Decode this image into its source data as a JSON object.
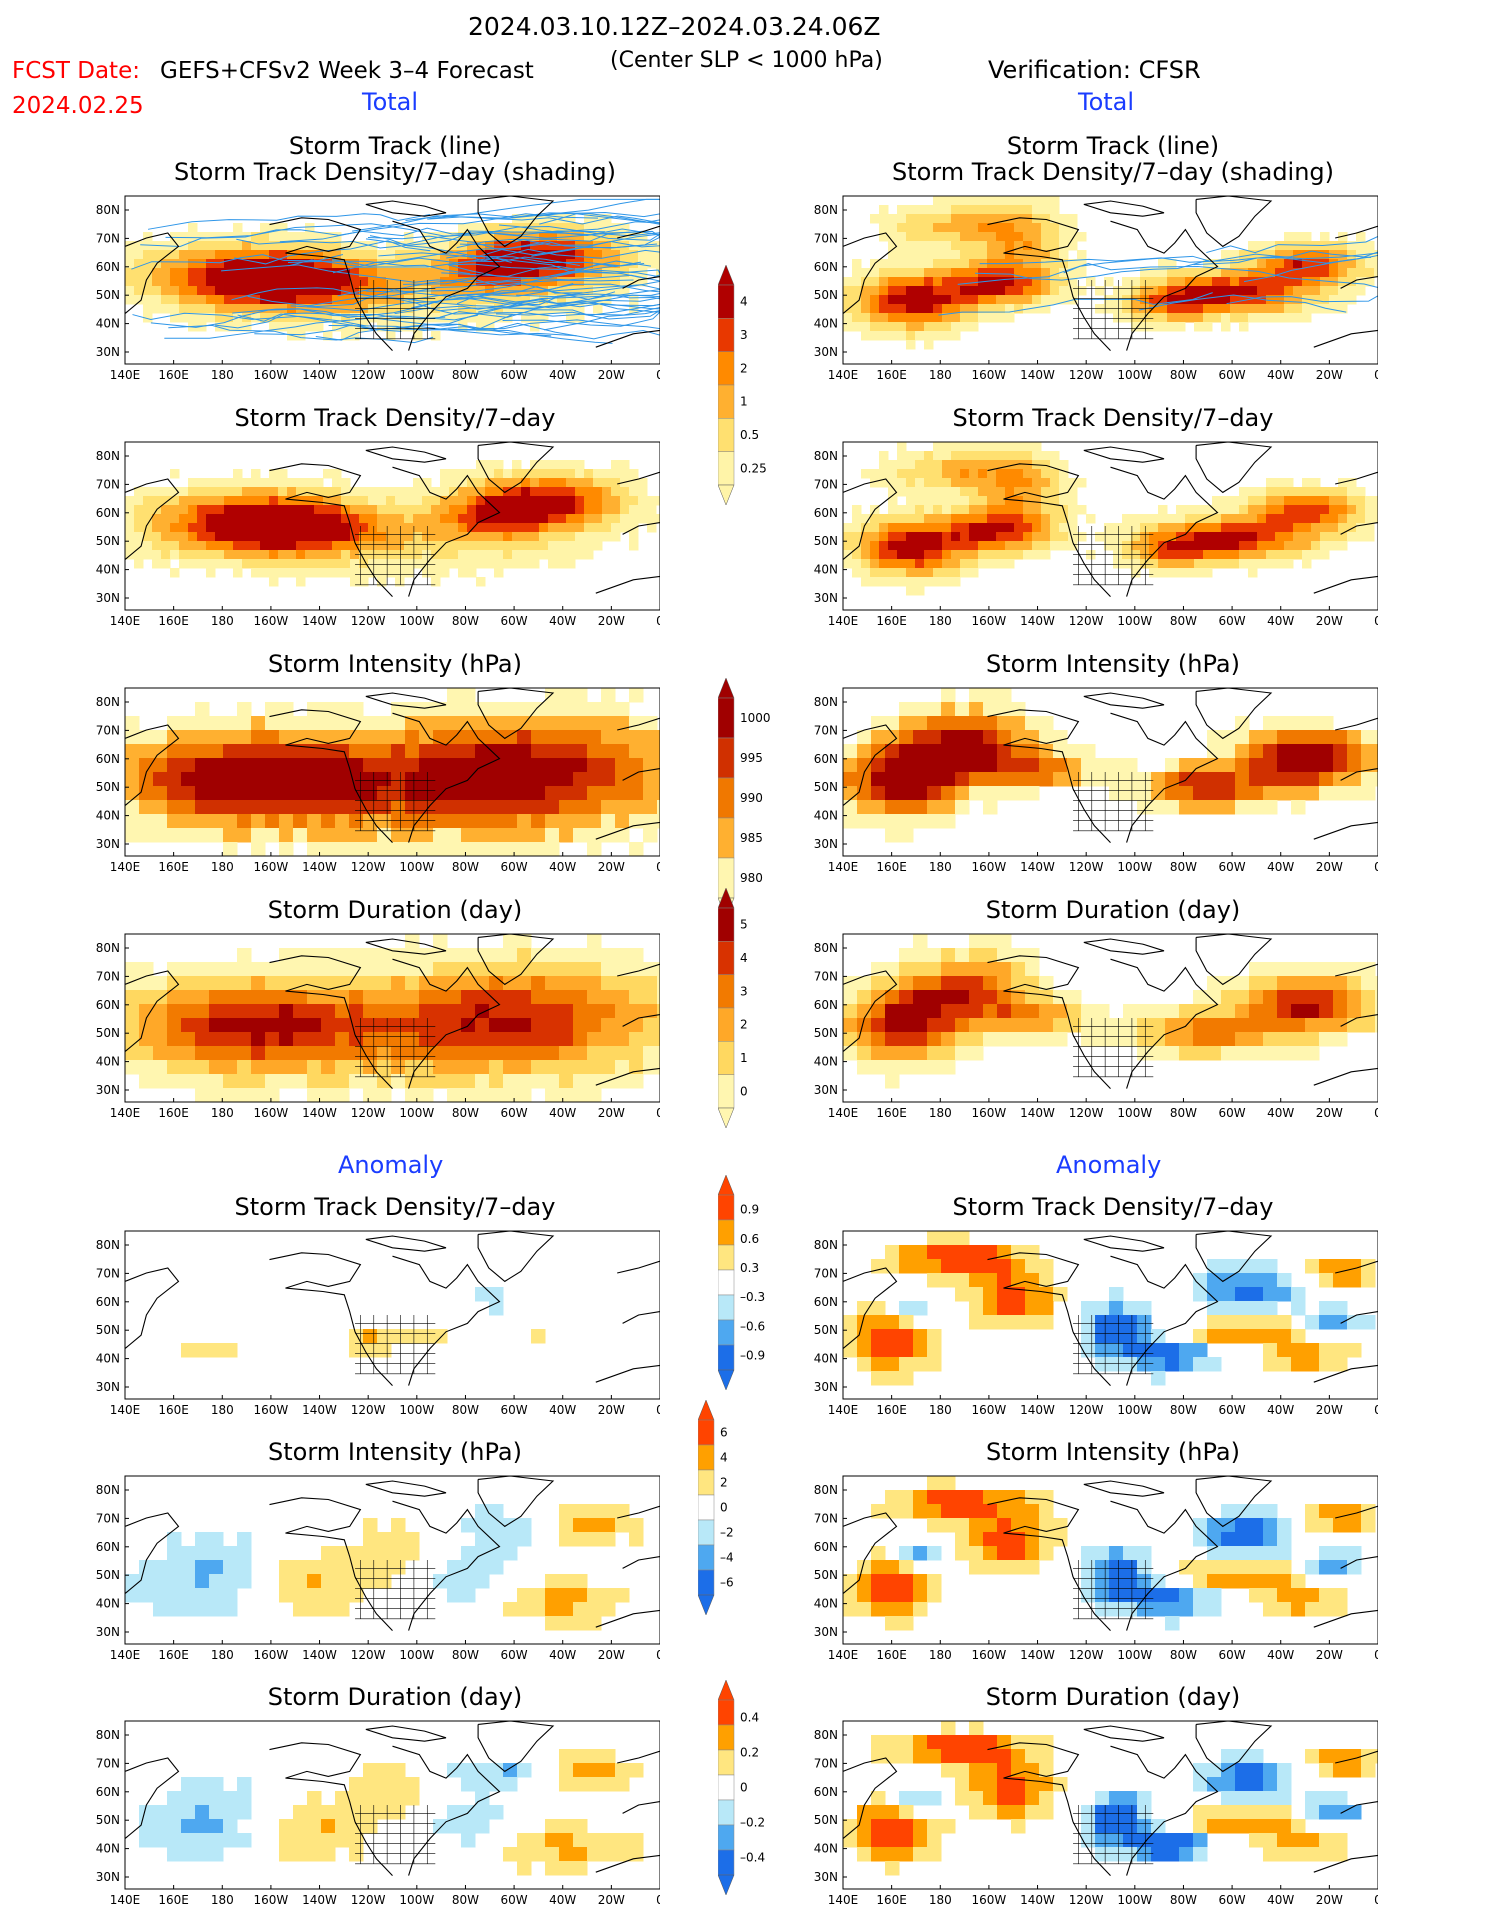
{
  "header": {
    "period": "2024.03.10.12Z–2024.03.24.06Z",
    "fcst_label": "FCST Date:",
    "fcst_date": "2024.02.25",
    "model": "GEFS+CFSv2 Week 3–4 Forecast",
    "criterion": "(Center SLP < 1000 hPa)",
    "verification": "Verification: CFSR"
  },
  "sections": {
    "total": "Total",
    "anomaly": "Anomaly"
  },
  "titles": {
    "track_line": "Storm Track (line)",
    "track_shading": "Storm Track Density/7–day (shading)",
    "density": "Storm Track Density/7–day",
    "intensity": "Storm Intensity (hPa)",
    "duration": "Storm Duration (day)"
  },
  "axes": {
    "lat": [
      "80N",
      "70N",
      "60N",
      "50N",
      "40N",
      "30N"
    ],
    "lon": [
      "140E",
      "160E",
      "180",
      "160W",
      "140W",
      "120W",
      "100W",
      "80W",
      "60W",
      "40W",
      "20W",
      "0"
    ]
  },
  "colorbars": {
    "density": [
      "4",
      "3",
      "2",
      "1",
      "0.5",
      "0.25"
    ],
    "intensity": [
      "1000",
      "995",
      "990",
      "985",
      "980"
    ],
    "duration": [
      "5",
      "4",
      "3",
      "2",
      "1",
      "0"
    ],
    "density_anom": [
      "0.9",
      "0.6",
      "0.3",
      "–0.3",
      "–0.6",
      "–0.9"
    ],
    "intensity_anom": [
      "6",
      "4",
      "2",
      "0",
      "–2",
      "–4",
      "–6"
    ],
    "duration_anom": [
      "0.4",
      "0.2",
      "0",
      "–0.2",
      "–0.4"
    ]
  },
  "colors": {
    "density": [
      "#fff4a8",
      "#ffe070",
      "#ffb030",
      "#ff8a00",
      "#e83800",
      "#b00000"
    ],
    "intensity": [
      "#fff6b0",
      "#ffb030",
      "#f07800",
      "#d03000",
      "#a00000"
    ],
    "duration": [
      "#fff6b0",
      "#ffd860",
      "#ffa828",
      "#f27a00",
      "#d83200",
      "#a00000"
    ],
    "density_anom": [
      "#1c6ee8",
      "#4ea8f0",
      "#b8e8f8",
      "#ffffff",
      "#ffe680",
      "#ffa000",
      "#ff4400"
    ],
    "intensity_anom": [
      "#1c6ee8",
      "#4ea8f0",
      "#b8e8f8",
      "#ffffff",
      "#ffe680",
      "#ffa000",
      "#ff4400"
    ],
    "duration_anom": [
      "#1c6ee8",
      "#4ea8f0",
      "#b8e8f8",
      "#ffffff",
      "#ffe680",
      "#ffa000",
      "#ff4400"
    ],
    "track_line": "#2f96e8",
    "accent_red": "#ff0000",
    "accent_blue": "#1a3cff"
  }
}
